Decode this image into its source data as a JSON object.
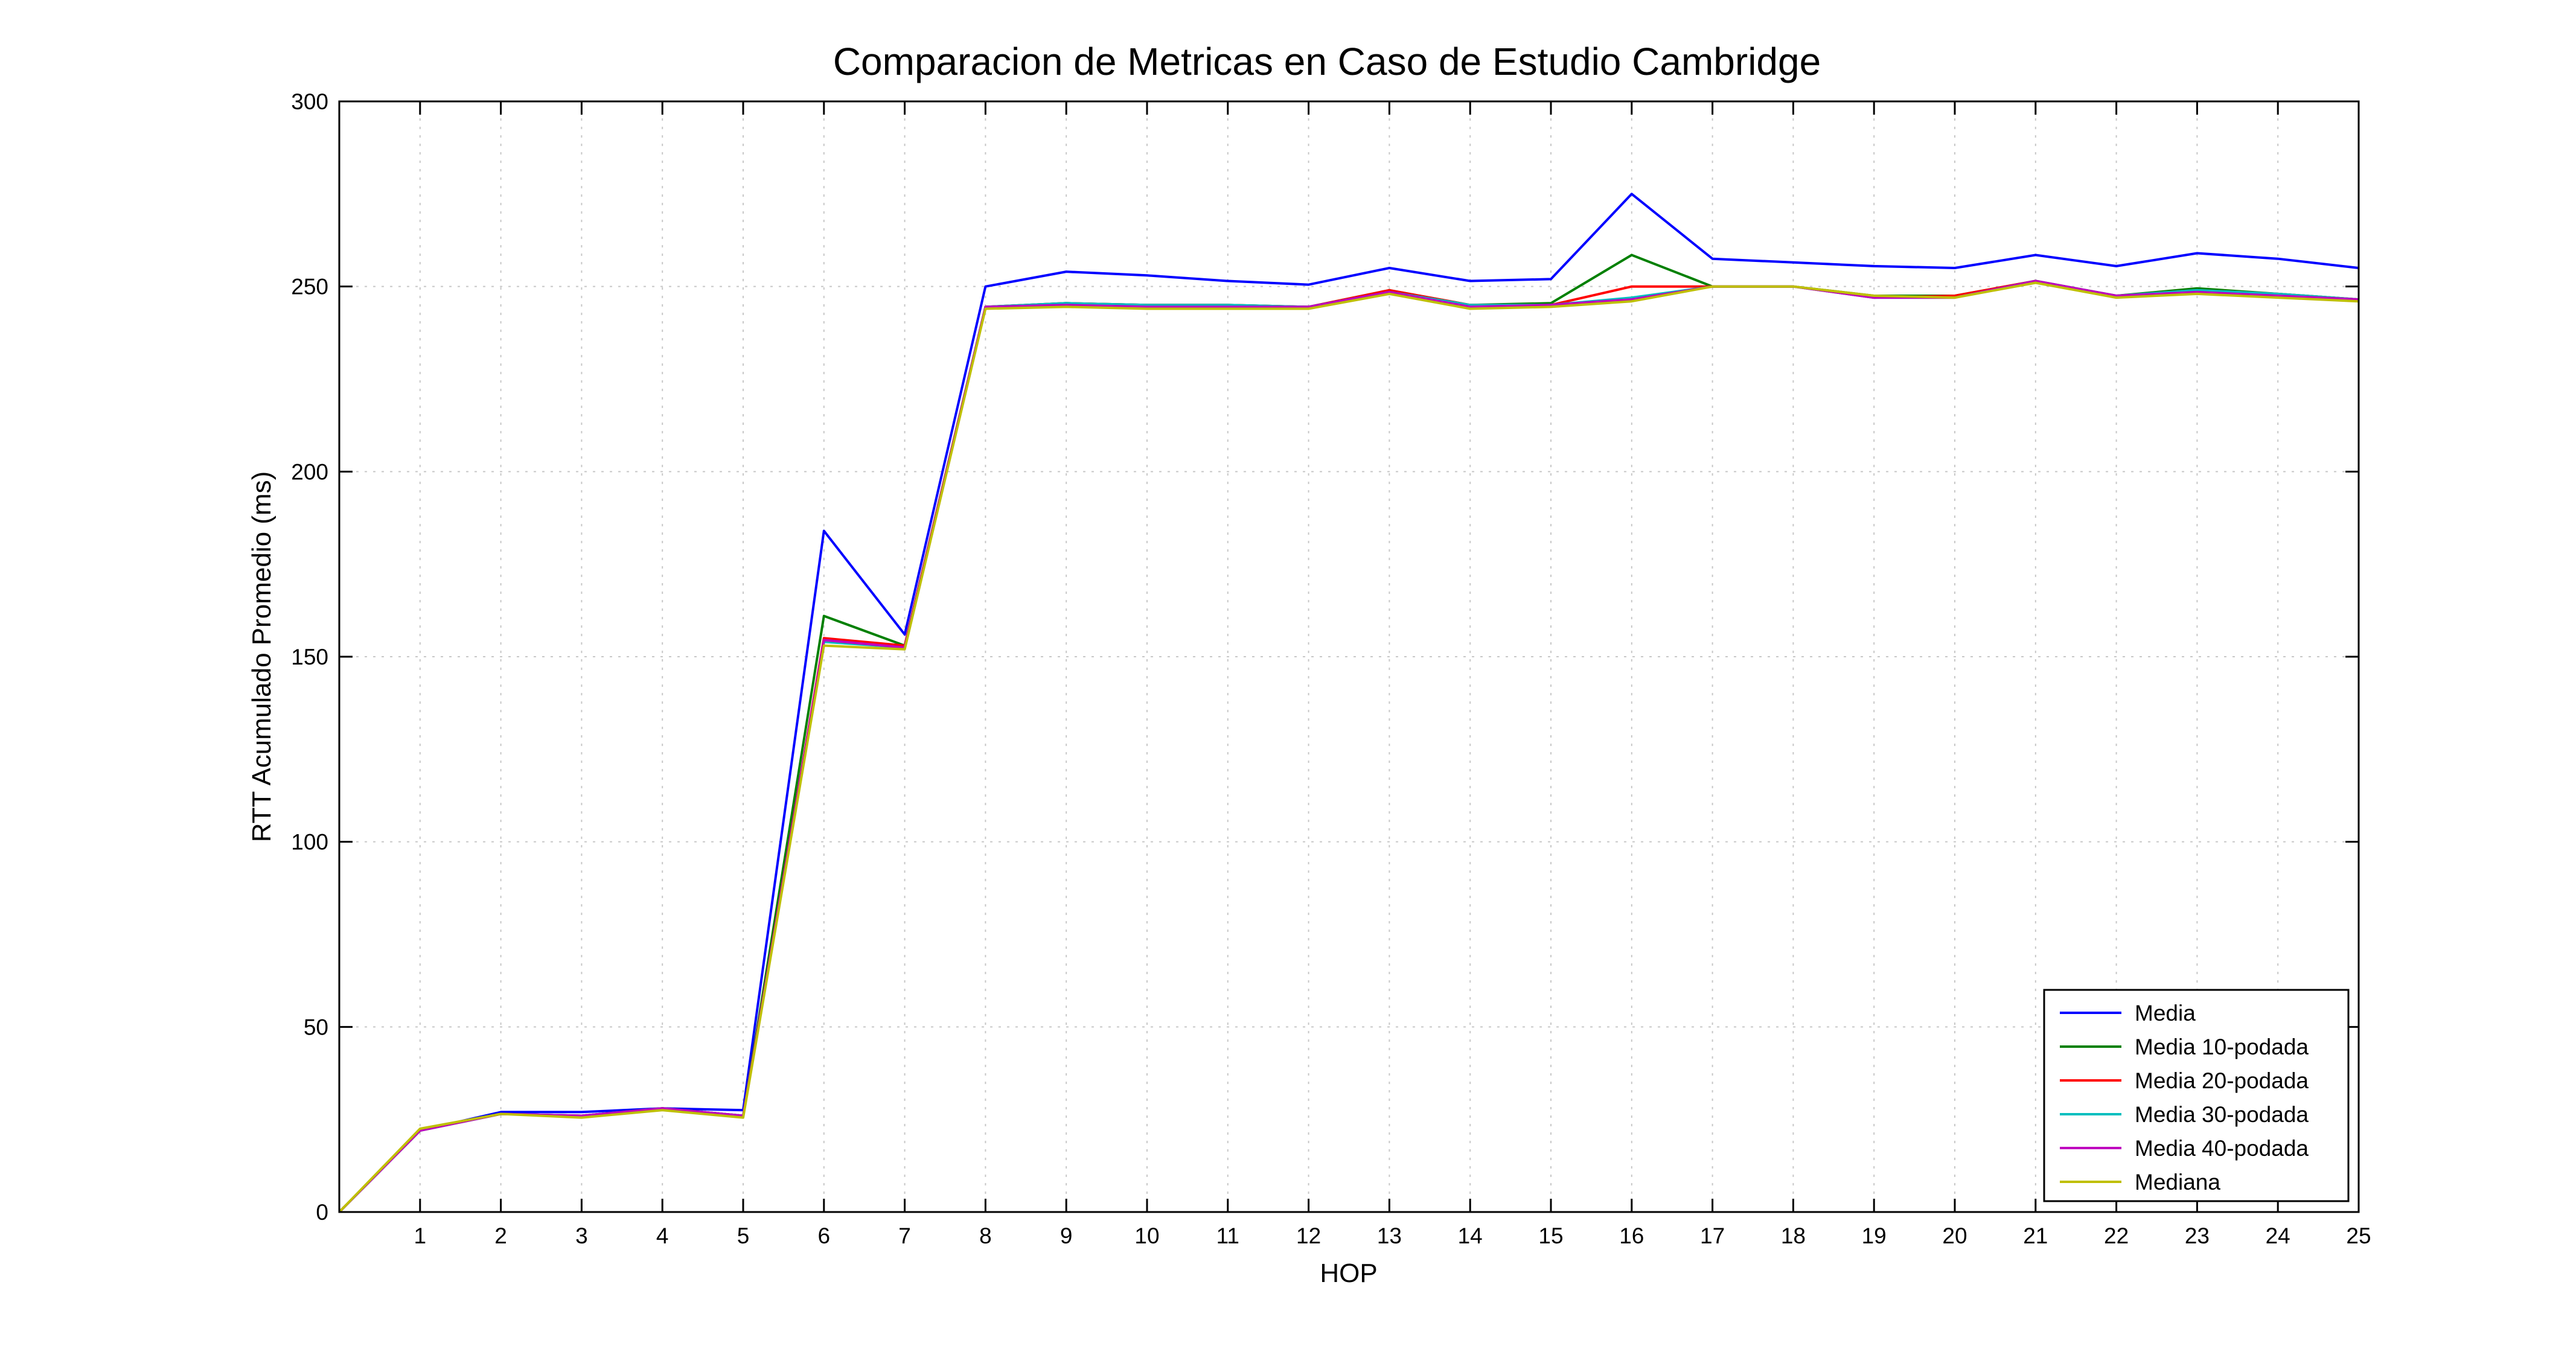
{
  "chart_data": {
    "type": "line",
    "title": "Comparacion de Metricas en Caso de Estudio Cambridge",
    "xlabel": "HOP",
    "ylabel": "RTT Acumulado Promedio (ms)",
    "xlim": [
      0,
      25
    ],
    "ylim": [
      0,
      300
    ],
    "xticks": [
      1,
      2,
      3,
      4,
      5,
      6,
      7,
      8,
      9,
      10,
      11,
      12,
      13,
      14,
      15,
      16,
      17,
      18,
      19,
      20,
      21,
      22,
      23,
      24,
      25
    ],
    "yticks": [
      0,
      50,
      100,
      150,
      200,
      250,
      300
    ],
    "grid": true,
    "legend_position": "bottom-right",
    "x": [
      0,
      1,
      2,
      3,
      4,
      5,
      6,
      7,
      8,
      9,
      10,
      11,
      12,
      13,
      14,
      15,
      16,
      17,
      18,
      19,
      20,
      21,
      22,
      23,
      24,
      25
    ],
    "series": [
      {
        "name": "Media",
        "color": "#0000ff",
        "values": [
          0,
          22,
          27,
          27,
          28,
          27.5,
          184,
          156,
          250,
          254,
          253,
          251.5,
          250.5,
          255,
          251.5,
          252,
          275,
          257.5,
          256.5,
          255.5,
          255,
          258.5,
          255.5,
          259,
          257.5,
          255
        ]
      },
      {
        "name": "Media 10-podada",
        "color": "#008000",
        "values": [
          0,
          22,
          26.5,
          26,
          28,
          26,
          161,
          153,
          244.5,
          245.5,
          245,
          245,
          244.5,
          249,
          245,
          245.5,
          258.5,
          250,
          250,
          247.5,
          247.5,
          251.5,
          247.5,
          249.5,
          248,
          246.5
        ]
      },
      {
        "name": "Media 20-podada",
        "color": "#ff0000",
        "values": [
          0,
          22,
          26.5,
          26,
          28,
          26,
          155,
          153,
          244.5,
          245.5,
          245,
          245,
          244.5,
          249,
          245,
          245,
          250,
          250,
          250,
          247,
          247.5,
          251.5,
          247.5,
          249,
          248,
          246.5
        ]
      },
      {
        "name": "Media 30-podada",
        "color": "#00bfbf",
        "values": [
          0,
          22,
          26.5,
          26,
          28,
          26,
          154,
          152.5,
          244.5,
          245.5,
          245,
          245,
          244.5,
          248.5,
          245,
          245,
          247,
          250,
          250,
          247,
          247,
          251.5,
          247.5,
          249,
          248,
          246.5
        ]
      },
      {
        "name": "Media 40-podada",
        "color": "#bf00bf",
        "values": [
          0,
          22,
          26.5,
          26,
          28,
          26,
          154.5,
          152.5,
          244.5,
          245,
          244.5,
          244.5,
          244.5,
          248.5,
          244.5,
          245,
          246.5,
          250,
          250,
          247,
          247,
          251.5,
          247.5,
          248.5,
          247.5,
          246.5
        ]
      },
      {
        "name": "Mediana",
        "color": "#bfbf00",
        "values": [
          0,
          22.5,
          26.5,
          25.5,
          27.5,
          25.5,
          153,
          152,
          244,
          244.5,
          244,
          244,
          244,
          248,
          244,
          244.5,
          246,
          250,
          250,
          247.5,
          247,
          251,
          247,
          248,
          247,
          246
        ]
      }
    ]
  }
}
